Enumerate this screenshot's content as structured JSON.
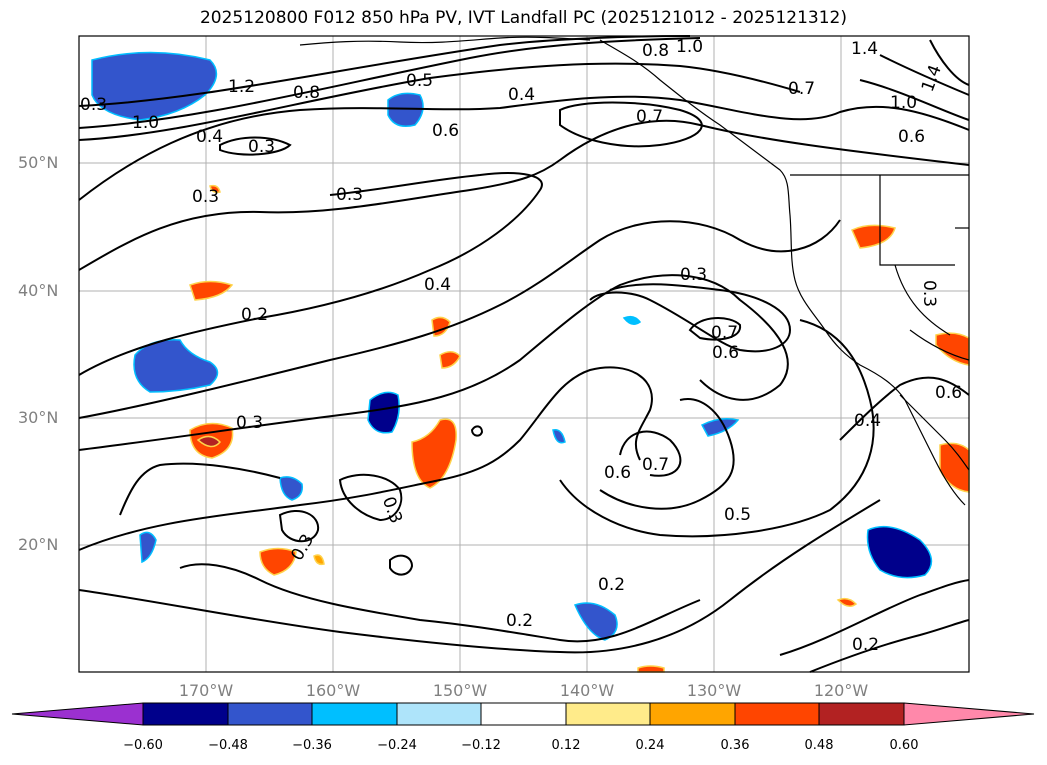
{
  "title": "2025120800 F012 850 hPa PV, IVT Landfall PC (2025121012 - 2025121312)",
  "map": {
    "lat_labels": [
      "50°N",
      "40°N",
      "30°N",
      "20°N"
    ],
    "lon_labels": [
      "170°W",
      "160°W",
      "150°W",
      "140°W",
      "130°W",
      "120°W"
    ],
    "lat_values": [
      50,
      40,
      30,
      20
    ],
    "lon_values": [
      -170,
      -160,
      -150,
      -140,
      -130,
      -120
    ],
    "extent": {
      "lon_min": -180,
      "lon_max": -110,
      "lat_min": 10,
      "lat_max": 60
    },
    "gridlines": true,
    "contour_labels": [
      "1.0",
      "1.2",
      "0.8",
      "0.4",
      "0.5",
      "0.3",
      "0.6",
      "0.4",
      "0.8",
      "1.0",
      "1.4",
      "1.4",
      "0.7",
      "1.0",
      "0.6",
      "0.7",
      "0.3",
      "0.3",
      "0.4",
      "0.2",
      "0.3",
      "0.7",
      "0.6",
      "0.3",
      "0.3",
      "0.3",
      "0.6",
      "0.7",
      "0.6",
      "0.5",
      "0.4",
      "0.3",
      "0.2",
      "0.2",
      "0.2",
      "0.3"
    ]
  },
  "colorbar": {
    "ticks": [
      "−0.60",
      "−0.48",
      "−0.36",
      "−0.24",
      "−0.12",
      "0.12",
      "0.24",
      "0.36",
      "0.48",
      "0.60"
    ],
    "colors": [
      "#9b30d0",
      "#00008b",
      "#3355cc",
      "#00bfff",
      "#aee4fa",
      "#ffffff",
      "#ffeb8a",
      "#ffa500",
      "#ff4500",
      "#b22222",
      "#ff88aa"
    ]
  }
}
